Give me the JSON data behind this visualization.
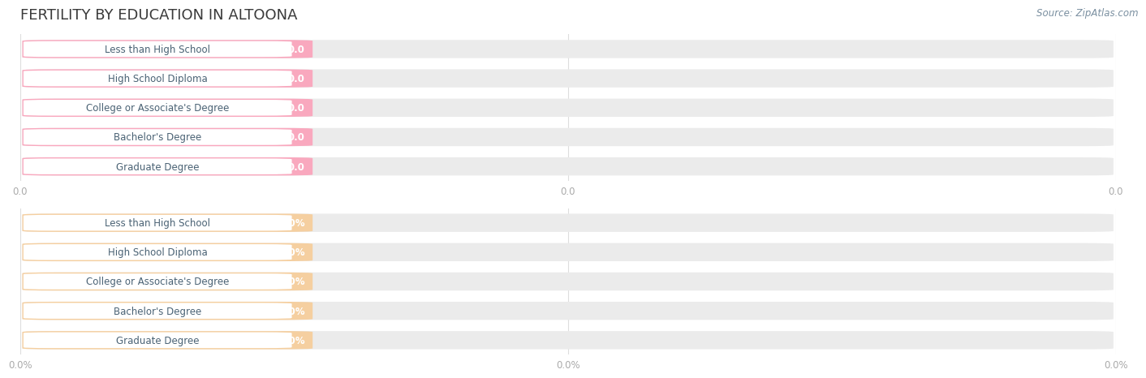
{
  "title": "FERTILITY BY EDUCATION IN ALTOONA",
  "source": "Source: ZipAtlas.com",
  "categories": [
    "Less than High School",
    "High School Diploma",
    "College or Associate's Degree",
    "Bachelor's Degree",
    "Graduate Degree"
  ],
  "section1_values": [
    0.0,
    0.0,
    0.0,
    0.0,
    0.0
  ],
  "section2_values": [
    0.0,
    0.0,
    0.0,
    0.0,
    0.0
  ],
  "section1_bar_color": "#F9A8BE",
  "section2_bar_color": "#F5CFA0",
  "section1_track_color": "#EBEBEB",
  "section2_track_color": "#EBEBEB",
  "label_bg_color": "#FFFFFF",
  "value_text_color": "#FFFFFF",
  "label_text_color": "#4A6274",
  "title_color": "#3A3A3A",
  "source_color": "#7A8FA0",
  "axis_tick_color": "#AAAAAA",
  "tick_labels_section1": [
    "0.0",
    "0.0",
    "0.0"
  ],
  "tick_labels_section2": [
    "0.0%",
    "0.0%",
    "0.0%"
  ],
  "background_color": "#FFFFFF",
  "grid_color": "#DDDDDD",
  "figsize": [
    14.06,
    4.76
  ],
  "dpi": 100
}
